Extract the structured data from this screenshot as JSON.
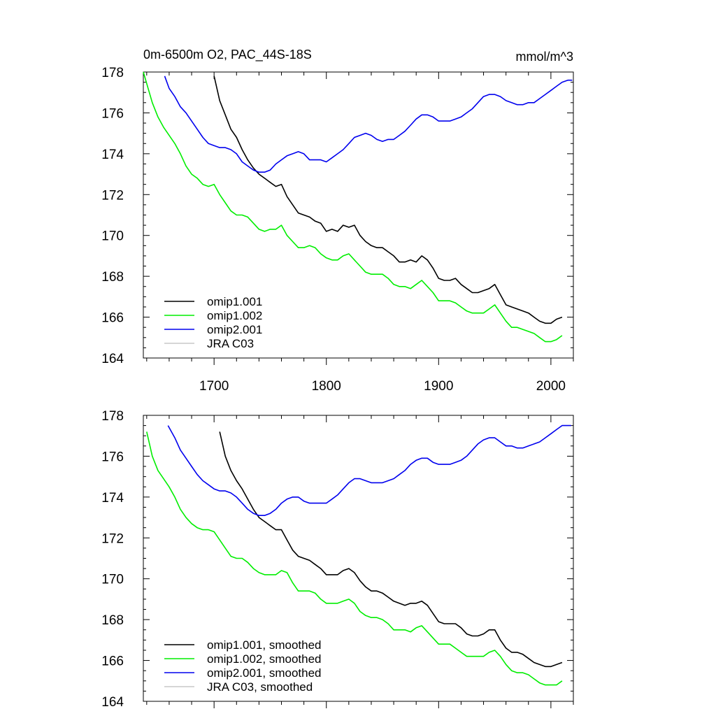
{
  "chart_data": [
    {
      "type": "line",
      "title": "0m-6500m O2, PAC_44S-18S",
      "units": "mmol/m^3",
      "xlim": [
        1637,
        2020
      ],
      "ylim": [
        164,
        178
      ],
      "xticks": [
        1700,
        1800,
        1900,
        2000
      ],
      "yticks": [
        164,
        166,
        168,
        170,
        172,
        174,
        176,
        178
      ],
      "legend_position": "bottom-left",
      "grid": false,
      "series": [
        {
          "name": "omip1.001",
          "color": "#000000",
          "x": [
            1700,
            1705,
            1710,
            1715,
            1720,
            1725,
            1730,
            1735,
            1740,
            1745,
            1750,
            1755,
            1760,
            1765,
            1770,
            1775,
            1780,
            1785,
            1790,
            1795,
            1800,
            1805,
            1810,
            1815,
            1820,
            1825,
            1830,
            1835,
            1840,
            1845,
            1850,
            1855,
            1860,
            1865,
            1870,
            1875,
            1880,
            1885,
            1890,
            1895,
            1900,
            1905,
            1910,
            1915,
            1920,
            1925,
            1930,
            1935,
            1940,
            1945,
            1950,
            1955,
            1960,
            1965,
            1970,
            1975,
            1980,
            1985,
            1990,
            1995,
            2000,
            2005,
            2010
          ],
          "y": [
            177.8,
            176.6,
            175.9,
            175.2,
            174.8,
            174.2,
            173.7,
            173.3,
            173.0,
            172.8,
            172.6,
            172.4,
            172.5,
            171.9,
            171.5,
            171.1,
            171.0,
            170.9,
            170.7,
            170.6,
            170.2,
            170.3,
            170.2,
            170.5,
            170.4,
            170.5,
            170.0,
            169.7,
            169.5,
            169.4,
            169.4,
            169.2,
            169.0,
            168.7,
            168.7,
            168.8,
            168.7,
            169.0,
            168.8,
            168.4,
            167.9,
            167.8,
            167.8,
            167.9,
            167.6,
            167.4,
            167.2,
            167.2,
            167.3,
            167.4,
            167.6,
            167.1,
            166.6,
            166.5,
            166.4,
            166.3,
            166.2,
            166.0,
            165.8,
            165.7,
            165.7,
            165.9,
            166.0
          ]
        },
        {
          "name": "omip1.002",
          "color": "#00ee00",
          "x": [
            1637,
            1645,
            1650,
            1655,
            1660,
            1665,
            1670,
            1675,
            1680,
            1685,
            1690,
            1695,
            1700,
            1705,
            1710,
            1715,
            1720,
            1725,
            1730,
            1735,
            1740,
            1745,
            1750,
            1755,
            1760,
            1765,
            1770,
            1775,
            1780,
            1785,
            1790,
            1795,
            1800,
            1805,
            1810,
            1815,
            1820,
            1825,
            1830,
            1835,
            1840,
            1845,
            1850,
            1855,
            1860,
            1865,
            1870,
            1875,
            1880,
            1885,
            1890,
            1895,
            1900,
            1905,
            1910,
            1915,
            1920,
            1925,
            1930,
            1935,
            1940,
            1945,
            1950,
            1955,
            1960,
            1965,
            1970,
            1975,
            1980,
            1985,
            1990,
            1995,
            2000,
            2005,
            2010
          ],
          "y": [
            178.0,
            176.5,
            175.8,
            175.3,
            174.9,
            174.5,
            174.0,
            173.4,
            173.0,
            172.8,
            172.5,
            172.4,
            172.5,
            172.0,
            171.6,
            171.2,
            171.0,
            171.0,
            170.9,
            170.6,
            170.3,
            170.2,
            170.3,
            170.3,
            170.5,
            170.0,
            169.7,
            169.4,
            169.4,
            169.5,
            169.4,
            169.1,
            168.9,
            168.8,
            168.8,
            169.0,
            169.1,
            168.8,
            168.5,
            168.2,
            168.1,
            168.1,
            168.1,
            167.9,
            167.6,
            167.5,
            167.5,
            167.4,
            167.6,
            167.8,
            167.5,
            167.2,
            166.8,
            166.8,
            166.8,
            166.7,
            166.5,
            166.3,
            166.2,
            166.2,
            166.2,
            166.4,
            166.6,
            166.2,
            165.8,
            165.5,
            165.5,
            165.4,
            165.3,
            165.2,
            165.0,
            164.8,
            164.8,
            164.9,
            165.1
          ]
        },
        {
          "name": "omip2.001",
          "color": "#0000ee",
          "x": [
            1656,
            1660,
            1665,
            1670,
            1675,
            1680,
            1685,
            1690,
            1695,
            1700,
            1705,
            1710,
            1715,
            1720,
            1725,
            1730,
            1735,
            1740,
            1745,
            1750,
            1755,
            1760,
            1765,
            1770,
            1775,
            1780,
            1785,
            1790,
            1795,
            1800,
            1805,
            1810,
            1815,
            1820,
            1825,
            1830,
            1835,
            1840,
            1845,
            1850,
            1855,
            1860,
            1865,
            1870,
            1875,
            1880,
            1885,
            1890,
            1895,
            1900,
            1905,
            1910,
            1915,
            1920,
            1925,
            1930,
            1935,
            1940,
            1945,
            1950,
            1955,
            1960,
            1965,
            1970,
            1975,
            1980,
            1985,
            1990,
            1995,
            2000,
            2005,
            2010,
            2015,
            2019
          ],
          "y": [
            177.8,
            177.2,
            176.8,
            176.3,
            176.0,
            175.6,
            175.2,
            174.8,
            174.5,
            174.4,
            174.3,
            174.3,
            174.2,
            174.0,
            173.6,
            173.4,
            173.2,
            173.1,
            173.1,
            173.2,
            173.5,
            173.7,
            173.9,
            174.0,
            174.1,
            174.0,
            173.7,
            173.7,
            173.7,
            173.6,
            173.8,
            174.0,
            174.2,
            174.5,
            174.8,
            174.9,
            175.0,
            174.9,
            174.7,
            174.6,
            174.7,
            174.7,
            174.9,
            175.1,
            175.4,
            175.7,
            175.9,
            175.9,
            175.8,
            175.6,
            175.6,
            175.6,
            175.7,
            175.8,
            176.0,
            176.2,
            176.5,
            176.8,
            176.9,
            176.9,
            176.8,
            176.6,
            176.5,
            176.4,
            176.4,
            176.5,
            176.5,
            176.7,
            176.9,
            177.1,
            177.3,
            177.5,
            177.6,
            177.6
          ]
        },
        {
          "name": "JRA C03",
          "color": "#c8c8c8",
          "x": [],
          "y": []
        }
      ]
    },
    {
      "type": "line",
      "xlim": [
        1637,
        2020
      ],
      "ylim": [
        164,
        178
      ],
      "xticks": [
        1700,
        1800,
        1900,
        2000
      ],
      "yticks": [
        164,
        166,
        168,
        170,
        172,
        174,
        176,
        178
      ],
      "legend_position": "bottom-left",
      "grid": false,
      "series": [
        {
          "name": "omip1.001, smoothed",
          "color": "#000000",
          "x": [
            1705,
            1710,
            1715,
            1720,
            1725,
            1730,
            1735,
            1740,
            1745,
            1750,
            1755,
            1760,
            1765,
            1770,
            1775,
            1780,
            1785,
            1790,
            1795,
            1800,
            1805,
            1810,
            1815,
            1820,
            1825,
            1830,
            1835,
            1840,
            1845,
            1850,
            1855,
            1860,
            1865,
            1870,
            1875,
            1880,
            1885,
            1890,
            1895,
            1900,
            1905,
            1910,
            1915,
            1920,
            1925,
            1930,
            1935,
            1940,
            1945,
            1950,
            1955,
            1960,
            1965,
            1970,
            1975,
            1980,
            1985,
            1990,
            1995,
            2000,
            2005,
            2010
          ],
          "y": [
            177.2,
            176.0,
            175.3,
            174.8,
            174.4,
            173.9,
            173.4,
            173.0,
            172.8,
            172.6,
            172.4,
            172.4,
            171.9,
            171.4,
            171.1,
            171.0,
            170.9,
            170.7,
            170.5,
            170.2,
            170.2,
            170.2,
            170.4,
            170.5,
            170.3,
            169.9,
            169.6,
            169.4,
            169.4,
            169.3,
            169.1,
            168.9,
            168.8,
            168.7,
            168.8,
            168.8,
            168.9,
            168.7,
            168.3,
            167.9,
            167.8,
            167.8,
            167.8,
            167.6,
            167.3,
            167.2,
            167.2,
            167.3,
            167.5,
            167.5,
            167.0,
            166.6,
            166.4,
            166.4,
            166.3,
            166.1,
            165.9,
            165.8,
            165.7,
            165.7,
            165.8,
            165.9
          ]
        },
        {
          "name": "omip1.002, smoothed",
          "color": "#00ee00",
          "x": [
            1640,
            1645,
            1650,
            1655,
            1660,
            1665,
            1670,
            1675,
            1680,
            1685,
            1690,
            1695,
            1700,
            1705,
            1710,
            1715,
            1720,
            1725,
            1730,
            1735,
            1740,
            1745,
            1750,
            1755,
            1760,
            1765,
            1770,
            1775,
            1780,
            1785,
            1790,
            1795,
            1800,
            1805,
            1810,
            1815,
            1820,
            1825,
            1830,
            1835,
            1840,
            1845,
            1850,
            1855,
            1860,
            1865,
            1870,
            1875,
            1880,
            1885,
            1890,
            1895,
            1900,
            1905,
            1910,
            1915,
            1920,
            1925,
            1930,
            1935,
            1940,
            1945,
            1950,
            1955,
            1960,
            1965,
            1970,
            1975,
            1980,
            1985,
            1990,
            1995,
            2000,
            2005,
            2010
          ],
          "y": [
            177.2,
            176.0,
            175.3,
            174.9,
            174.5,
            174.0,
            173.4,
            173.0,
            172.7,
            172.5,
            172.4,
            172.4,
            172.3,
            171.9,
            171.5,
            171.1,
            171.0,
            171.0,
            170.8,
            170.5,
            170.3,
            170.2,
            170.2,
            170.2,
            170.4,
            170.3,
            169.8,
            169.4,
            169.4,
            169.4,
            169.3,
            169.0,
            168.8,
            168.8,
            168.8,
            168.9,
            169.0,
            168.8,
            168.4,
            168.2,
            168.1,
            168.1,
            168.0,
            167.8,
            167.5,
            167.5,
            167.5,
            167.4,
            167.6,
            167.7,
            167.4,
            167.1,
            166.8,
            166.8,
            166.8,
            166.6,
            166.4,
            166.2,
            166.2,
            166.2,
            166.2,
            166.4,
            166.5,
            166.2,
            165.8,
            165.5,
            165.4,
            165.4,
            165.3,
            165.1,
            164.9,
            164.8,
            164.8,
            164.8,
            165.0
          ]
        },
        {
          "name": "omip2.001, smoothed",
          "color": "#0000ee",
          "x": [
            1659,
            1665,
            1670,
            1675,
            1680,
            1685,
            1690,
            1695,
            1700,
            1705,
            1710,
            1715,
            1720,
            1725,
            1730,
            1735,
            1740,
            1745,
            1750,
            1755,
            1760,
            1765,
            1770,
            1775,
            1780,
            1785,
            1790,
            1795,
            1800,
            1805,
            1810,
            1815,
            1820,
            1825,
            1830,
            1835,
            1840,
            1845,
            1850,
            1855,
            1860,
            1865,
            1870,
            1875,
            1880,
            1885,
            1890,
            1895,
            1900,
            1905,
            1910,
            1915,
            1920,
            1925,
            1930,
            1935,
            1940,
            1945,
            1950,
            1955,
            1960,
            1965,
            1970,
            1975,
            1980,
            1985,
            1990,
            1995,
            2000,
            2005,
            2010,
            2015,
            2018
          ],
          "y": [
            177.5,
            176.9,
            176.3,
            175.9,
            175.5,
            175.1,
            174.8,
            174.6,
            174.4,
            174.3,
            174.3,
            174.2,
            174.0,
            173.7,
            173.4,
            173.2,
            173.1,
            173.1,
            173.2,
            173.4,
            173.7,
            173.9,
            174.0,
            174.0,
            173.8,
            173.7,
            173.7,
            173.7,
            173.7,
            173.9,
            174.1,
            174.4,
            174.7,
            174.9,
            174.9,
            174.8,
            174.7,
            174.7,
            174.7,
            174.8,
            174.9,
            175.1,
            175.3,
            175.6,
            175.8,
            175.9,
            175.9,
            175.7,
            175.6,
            175.6,
            175.6,
            175.7,
            175.8,
            176.0,
            176.3,
            176.6,
            176.8,
            176.9,
            176.9,
            176.7,
            176.5,
            176.5,
            176.4,
            176.4,
            176.5,
            176.6,
            176.7,
            176.9,
            177.1,
            177.3,
            177.5,
            177.5,
            177.5
          ]
        },
        {
          "name": "JRA C03, smoothed",
          "color": "#c8c8c8",
          "x": [],
          "y": []
        }
      ]
    }
  ]
}
